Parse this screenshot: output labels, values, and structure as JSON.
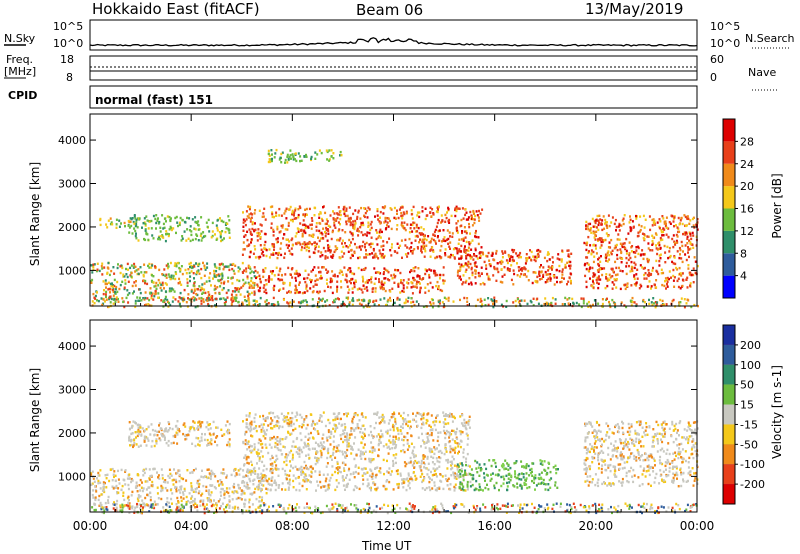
{
  "header": {
    "station": "Hokkaido East (fitACF)",
    "beam": "Beam 06",
    "date": "13/May/2019"
  },
  "status_panel": {
    "nsky_label": "N.Sky",
    "nsearch_label": "N.Search",
    "nsky_ticks": [
      "10^5",
      "10^0"
    ],
    "nsearch_ticks": [
      "10^5",
      "10^0"
    ],
    "freq_label": "Freq.",
    "freq_unit": "[MHz]",
    "freq_ticks": [
      "18",
      "8"
    ],
    "nave_label": "Nave",
    "nave_ticks": [
      "60",
      "0"
    ],
    "cpid_label": "CPID",
    "cpid_text": "normal (fast) 151"
  },
  "chart_data": [
    {
      "type": "heatmap",
      "title": "",
      "quantity": "power",
      "xlabel": "",
      "ylabel": "Slant Range [km]",
      "ylim": [
        180,
        4600
      ],
      "yticks": [
        1000,
        2000,
        3000,
        4000
      ],
      "xlim": [
        0,
        24
      ],
      "colorbar": {
        "label": "Power [dB]",
        "ticks": [
          "4",
          "8",
          "12",
          "16",
          "20",
          "24",
          "28"
        ],
        "colors": [
          "#0000ff",
          "#2e5c9c",
          "#2f8f6a",
          "#6cbc3e",
          "#f4c81a",
          "#f08a1a",
          "#e8401a",
          "#dd0000"
        ]
      },
      "regions": [
        {
          "t0": 0.3,
          "t1": 1.8,
          "r0": 2000,
          "r1": 2250,
          "level": "mid"
        },
        {
          "t0": 0.0,
          "t1": 6.5,
          "r0": 300,
          "r1": 1200,
          "level": "mixed"
        },
        {
          "t0": 1.5,
          "t1": 5.5,
          "r0": 1700,
          "r1": 2300,
          "level": "low"
        },
        {
          "t0": 6.0,
          "t1": 15.5,
          "r0": 1300,
          "r1": 2500,
          "level": "high"
        },
        {
          "t0": 6.5,
          "t1": 14.0,
          "r0": 500,
          "r1": 1100,
          "level": "high"
        },
        {
          "t0": 7.0,
          "t1": 10.0,
          "r0": 3500,
          "r1": 3800,
          "level": "low"
        },
        {
          "t0": 14.5,
          "t1": 19.0,
          "r0": 700,
          "r1": 1500,
          "level": "high"
        },
        {
          "t0": 19.5,
          "t1": 24.0,
          "r0": 600,
          "r1": 2300,
          "level": "high"
        },
        {
          "t0": 0.0,
          "t1": 24.0,
          "r0": 180,
          "r1": 400,
          "level": "mixed"
        }
      ]
    },
    {
      "type": "heatmap",
      "title": "",
      "quantity": "velocity",
      "xlabel": "Time UT",
      "ylabel": "Slant Range [km]",
      "ylim": [
        180,
        4600
      ],
      "yticks": [
        1000,
        2000,
        3000,
        4000
      ],
      "xlim": [
        0,
        24
      ],
      "xticks": [
        "00:00",
        "04:00",
        "08:00",
        "12:00",
        "16:00",
        "20:00",
        "00:00"
      ],
      "colorbar": {
        "label": "Velocity [m s-1]",
        "ticks": [
          "200",
          "100",
          "50",
          "15",
          "-15",
          "-50",
          "-100",
          "-200"
        ],
        "colors": [
          "#1a2fa0",
          "#2e5c9c",
          "#2f8f6a",
          "#6cbc3e",
          "#c8c8c0",
          "#f4c81a",
          "#f08a1a",
          "#e8401a",
          "#dd0000"
        ]
      },
      "regions": [
        {
          "t0": 0.0,
          "t1": 7.0,
          "r0": 300,
          "r1": 1200,
          "level": "zero"
        },
        {
          "t0": 1.5,
          "t1": 5.5,
          "r0": 1700,
          "r1": 2300,
          "level": "zero"
        },
        {
          "t0": 6.0,
          "t1": 15.0,
          "r0": 700,
          "r1": 2500,
          "level": "zero"
        },
        {
          "t0": 14.5,
          "t1": 18.5,
          "r0": 700,
          "r1": 1400,
          "level": "positive"
        },
        {
          "t0": 19.5,
          "t1": 24.0,
          "r0": 800,
          "r1": 2300,
          "level": "zero"
        },
        {
          "t0": 0.0,
          "t1": 24.0,
          "r0": 180,
          "r1": 400,
          "level": "mixed"
        }
      ]
    }
  ]
}
